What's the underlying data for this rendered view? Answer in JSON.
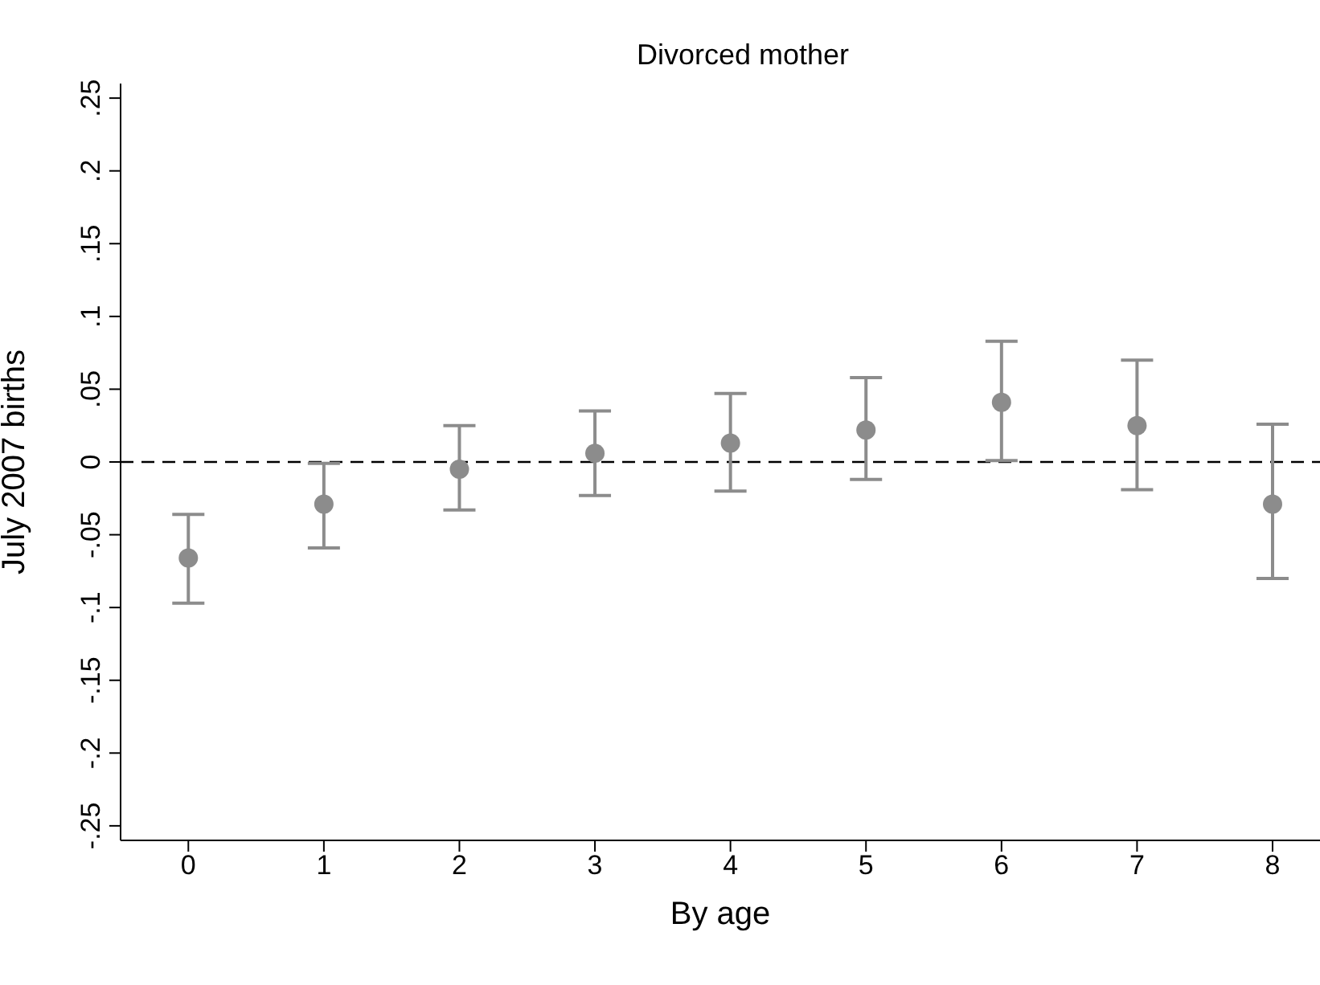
{
  "chart_data": {
    "type": "scatter",
    "title": "Divorced mother",
    "xlabel": "By age",
    "ylabel": "July 2007 births",
    "x": [
      0,
      1,
      2,
      3,
      4,
      5,
      6,
      7,
      8
    ],
    "series": [
      {
        "color": "#8c8c8c",
        "values": [
          -0.066,
          -0.029,
          -0.005,
          0.006,
          0.013,
          0.022,
          0.041,
          0.025,
          -0.029
        ],
        "errors": [
          [
            -0.097,
            -0.036
          ],
          [
            -0.059,
            -0.001
          ],
          [
            -0.033,
            0.025
          ],
          [
            -0.023,
            0.035
          ],
          [
            -0.02,
            0.047
          ],
          [
            -0.012,
            0.058
          ],
          [
            0.001,
            0.083
          ],
          [
            -0.019,
            0.07
          ],
          [
            -0.08,
            0.026
          ]
        ]
      }
    ],
    "xlim": [
      -0.5,
      8.35
    ],
    "xticks": [
      0,
      1,
      2,
      3,
      4,
      5,
      6,
      7,
      8
    ],
    "ylim": [
      -0.26,
      0.26
    ],
    "yticks": [
      {
        "value": -0.25,
        "label": "-.25"
      },
      {
        "value": -0.2,
        "label": "-.2"
      },
      {
        "value": -0.15,
        "label": "-.15"
      },
      {
        "value": -0.1,
        "label": "-.1"
      },
      {
        "value": -0.05,
        "label": "-.05"
      },
      {
        "value": 0,
        "label": "0"
      },
      {
        "value": 0.05,
        "label": ".05"
      },
      {
        "value": 0.1,
        "label": ".1"
      },
      {
        "value": 0.15,
        "label": ".15"
      },
      {
        "value": 0.2,
        "label": ".2"
      },
      {
        "value": 0.25,
        "label": ".25"
      }
    ],
    "ref_lines": [
      {
        "axis": "y",
        "value": 0,
        "line_style": "dashed",
        "color": "#000000"
      }
    ],
    "marker": "circle",
    "grid": false,
    "legend": false
  }
}
